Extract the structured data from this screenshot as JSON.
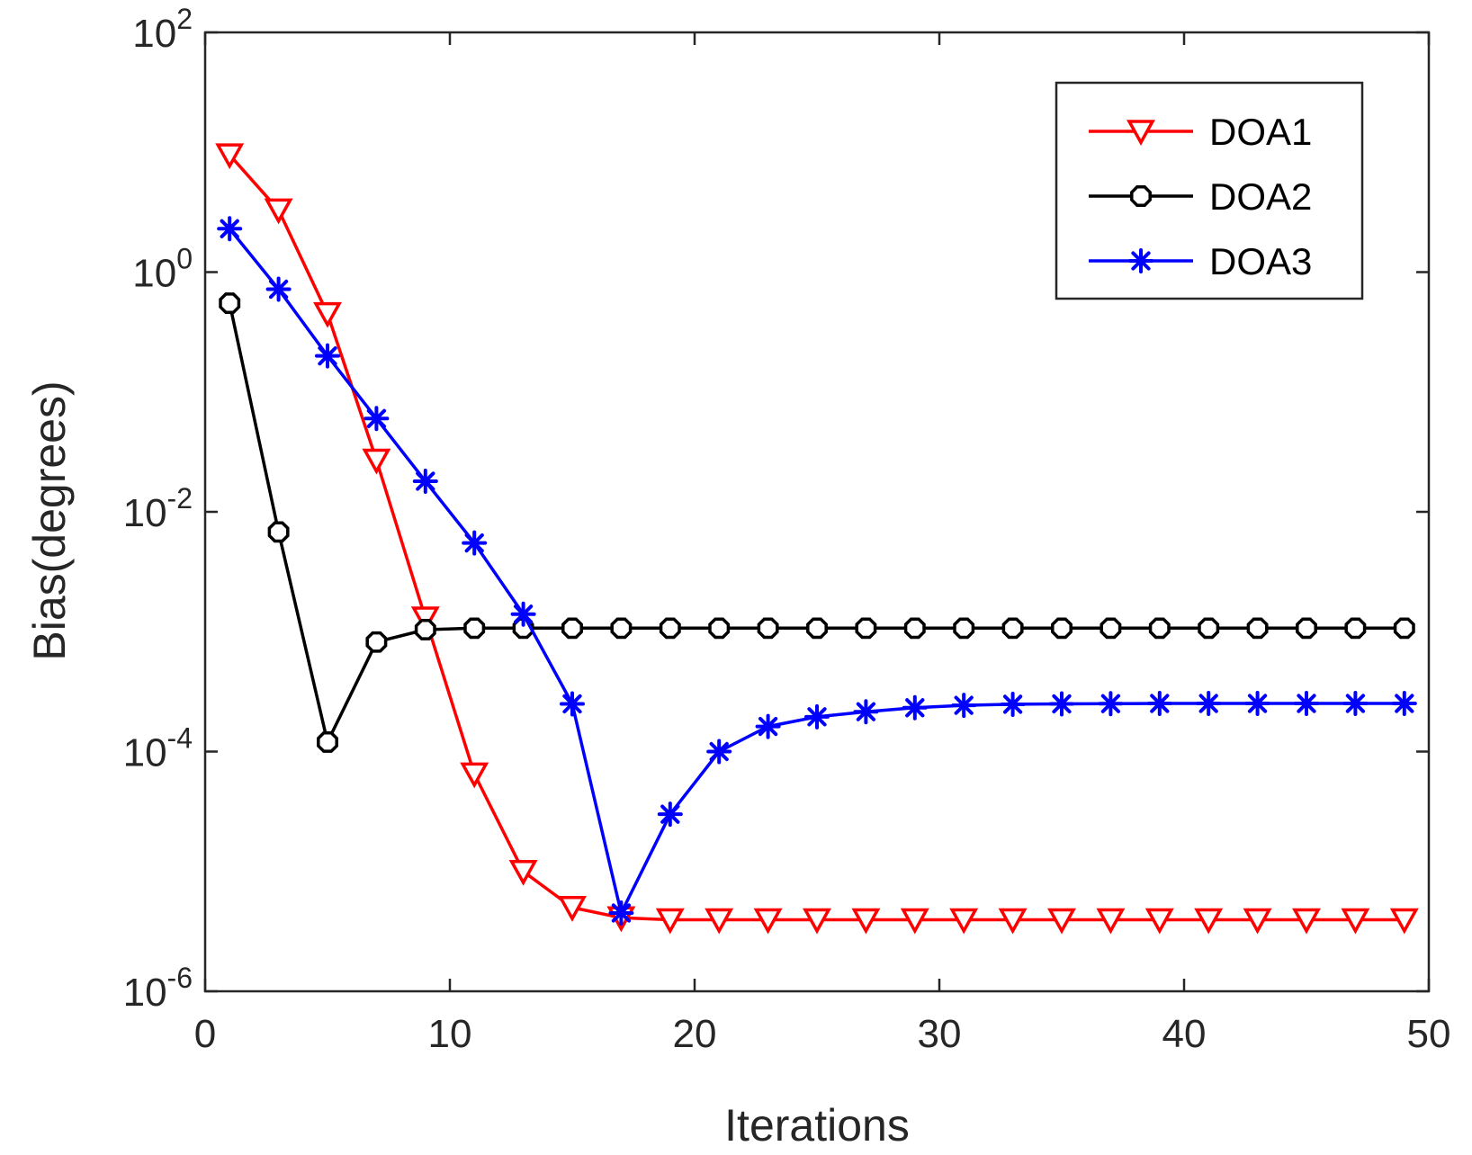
{
  "chart_data": {
    "type": "line",
    "title": "",
    "xlabel": "Iterations",
    "ylabel": "Bias(degrees)",
    "xlim": [
      0,
      50
    ],
    "ylim": [
      1e-06,
      100
    ],
    "yscale": "log",
    "grid": false,
    "legend_position": "top-right",
    "x_ticks": [
      0,
      10,
      20,
      30,
      40,
      50
    ],
    "y_ticks": [
      {
        "value": 1e-06,
        "base": "10",
        "exp": "-6"
      },
      {
        "value": 0.0001,
        "base": "10",
        "exp": "-4"
      },
      {
        "value": 0.01,
        "base": "10",
        "exp": "-2"
      },
      {
        "value": 1,
        "base": "10",
        "exp": "0"
      },
      {
        "value": 100,
        "base": "10",
        "exp": "2"
      }
    ],
    "x": [
      1,
      3,
      5,
      7,
      9,
      11,
      13,
      15,
      17,
      19,
      21,
      23,
      25,
      27,
      29,
      31,
      33,
      35,
      37,
      39,
      41,
      43,
      45,
      47,
      49
    ],
    "series": [
      {
        "name": "DOA1",
        "color": "#ff0000",
        "marker": "triangle-down",
        "values": [
          9.5,
          3.3,
          0.45,
          0.027,
          0.0013,
          6.5e-05,
          1e-05,
          5e-06,
          4.1e-06,
          3.95e-06,
          3.95e-06,
          3.95e-06,
          3.95e-06,
          3.95e-06,
          3.95e-06,
          3.95e-06,
          3.95e-06,
          3.95e-06,
          3.95e-06,
          3.95e-06,
          3.95e-06,
          3.95e-06,
          3.95e-06,
          3.95e-06,
          3.95e-06
        ]
      },
      {
        "name": "DOA2",
        "color": "#000000",
        "marker": "circle",
        "values": [
          0.55,
          0.0068,
          0.00012,
          0.00082,
          0.00104,
          0.00107,
          0.00107,
          0.00107,
          0.00107,
          0.00107,
          0.00107,
          0.00107,
          0.00107,
          0.00107,
          0.00107,
          0.00107,
          0.00107,
          0.00107,
          0.00107,
          0.00107,
          0.00107,
          0.00107,
          0.00107,
          0.00107,
          0.00107
        ]
      },
      {
        "name": "DOA3",
        "color": "#0000ff",
        "marker": "asterisk",
        "values": [
          2.3,
          0.72,
          0.2,
          0.06,
          0.018,
          0.0055,
          0.0014,
          0.00025,
          4.5e-06,
          3e-05,
          0.0001,
          0.000162,
          0.000195,
          0.000215,
          0.000232,
          0.000243,
          0.000248,
          0.00025,
          0.000251,
          0.000252,
          0.000252,
          0.000252,
          0.000252,
          0.000252,
          0.000252
        ]
      }
    ]
  }
}
